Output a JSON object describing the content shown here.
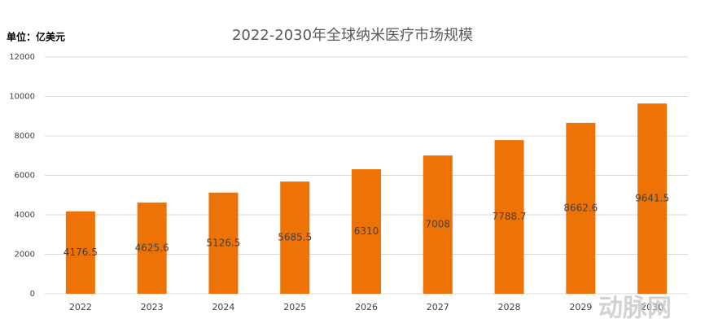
{
  "chart_data": {
    "type": "bar",
    "title": "2022-2030年全球纳米医疗市场规模",
    "unit_label": "单位：亿美元",
    "categories": [
      "2022",
      "2023",
      "2024",
      "2025",
      "2026",
      "2027",
      "2028",
      "2029",
      "2030"
    ],
    "values": [
      4176.5,
      4625.6,
      5126.5,
      5685.5,
      6310,
      7008,
      7788.7,
      8662.6,
      9641.5
    ],
    "color": "#ed7307",
    "ylim": [
      0,
      12000
    ],
    "yticks": [
      0,
      2000,
      4000,
      6000,
      8000,
      10000,
      12000
    ],
    "grid": true,
    "watermark": "动脉网"
  }
}
